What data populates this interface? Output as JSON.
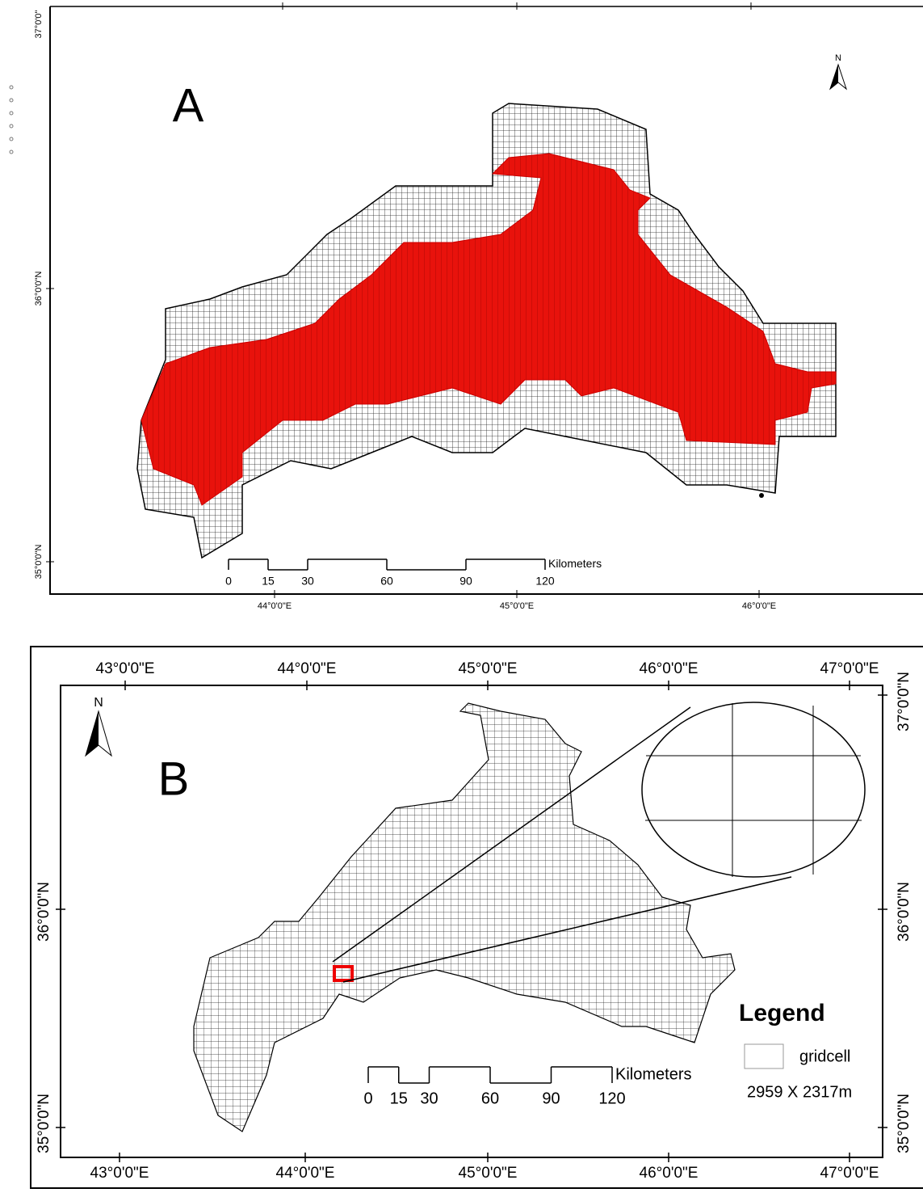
{
  "panel_a": {
    "label": "A",
    "north": "N",
    "lat_labels": [
      "37°0'0\"",
      "36°0'0\"N",
      "35°0'0\"N"
    ],
    "lon_labels": [
      "44°0'0\"E",
      "45°0'0\"E",
      "46°0'0\"E"
    ],
    "scale_bar": {
      "ticks": [
        0,
        15,
        30,
        60,
        90,
        120
      ],
      "unit": "Kilometers"
    }
  },
  "panel_b": {
    "label": "B",
    "north": "N",
    "top_lon_labels": [
      "43°0'0\"E",
      "44°0'0\"E",
      "45°0'0\"E",
      "46°0'0\"E",
      "47°0'0\"E"
    ],
    "bottom_lon_labels": [
      "43°0'0\"E",
      "44°0'0\"E",
      "45°0'0\"E",
      "46°0'0\"E",
      "47°0'0\"E"
    ],
    "left_lat_labels": [
      "36°0'0\"N",
      "35°0'0\"N"
    ],
    "right_lat_labels": [
      "37°0'0\"N",
      "36°0'0\"N",
      "35°0'0\"N"
    ],
    "scale_bar": {
      "ticks": [
        0,
        15,
        30,
        60,
        90,
        120
      ],
      "unit": "Kilometers"
    },
    "legend": {
      "title": "Legend",
      "item": "gridcell",
      "cell_size": "2959 X 2317m"
    }
  }
}
